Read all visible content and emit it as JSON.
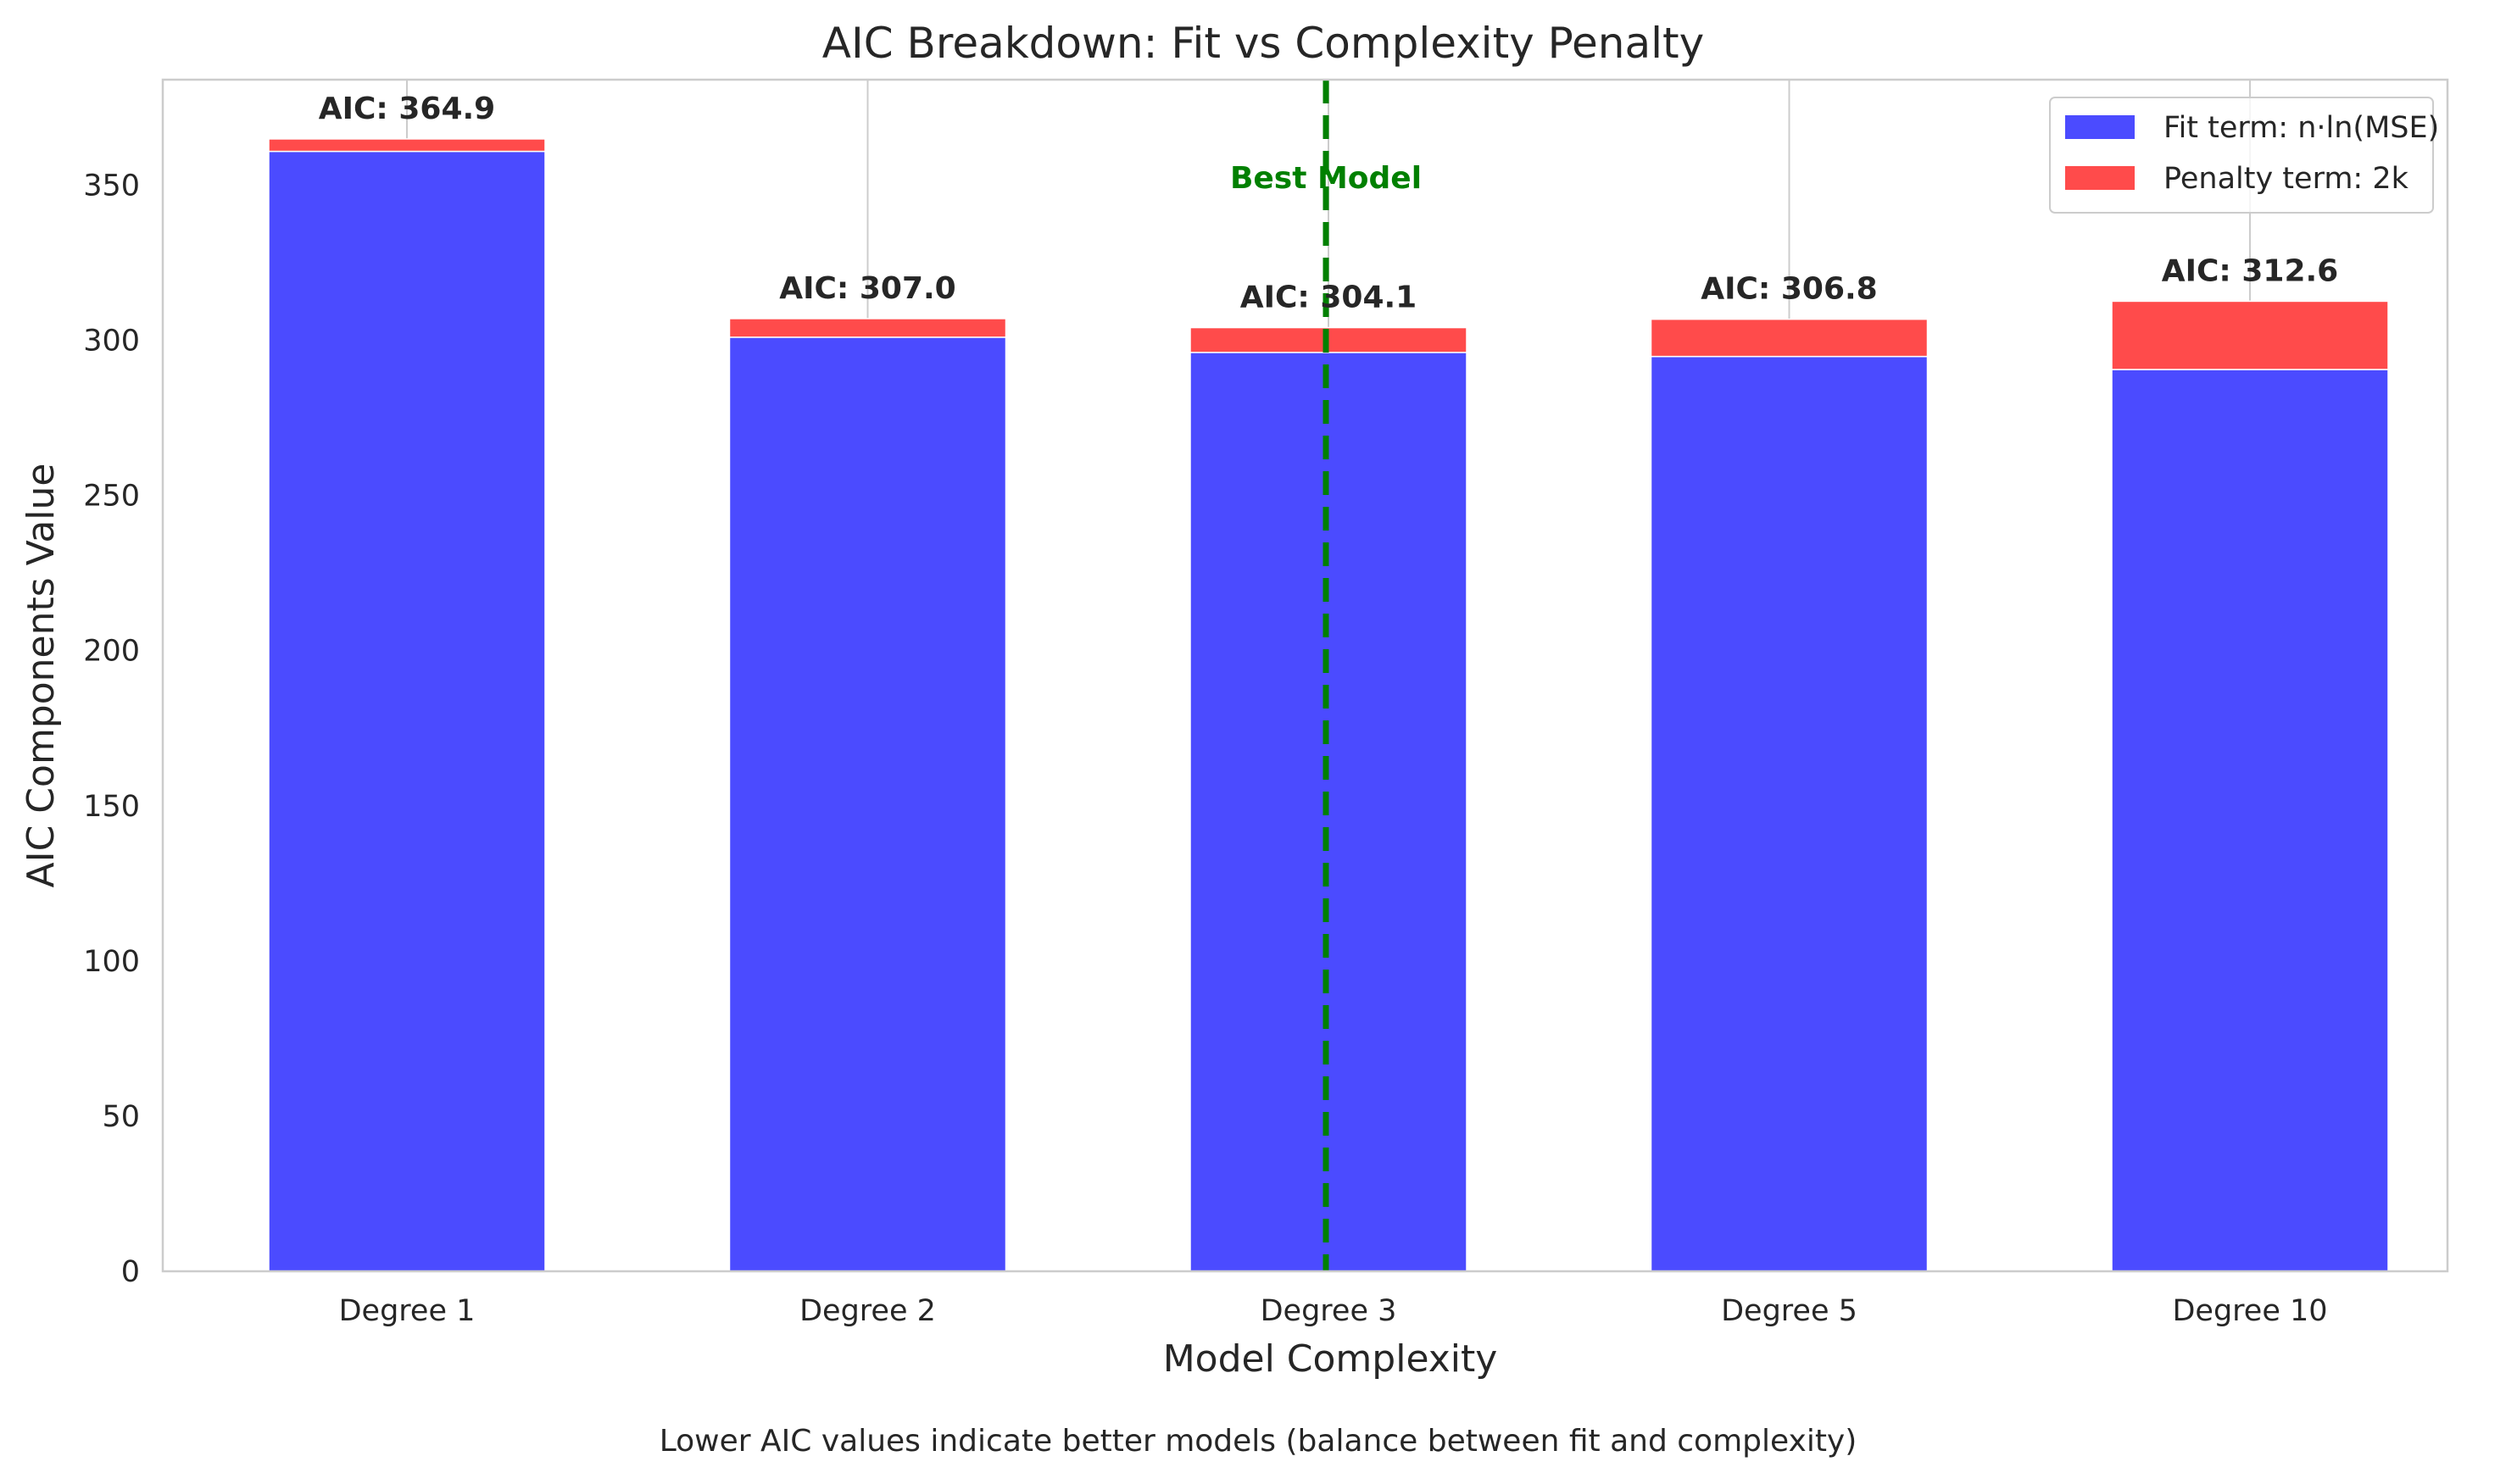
{
  "chart_data": {
    "type": "bar",
    "stacked": true,
    "title": "AIC Breakdown: Fit vs Complexity Penalty",
    "xlabel": "Model Complexity",
    "ylabel": "AIC Components Value",
    "categories": [
      "Degree 1",
      "Degree 2",
      "Degree 3",
      "Degree 5",
      "Degree 10"
    ],
    "series": [
      {
        "name": "Fit term: n·ln(MSE)",
        "color": "#4b4bff",
        "values": [
          360.9,
          301.0,
          296.1,
          294.8,
          290.6
        ]
      },
      {
        "name": "Penalty term: 2k",
        "color": "#ff4b4b",
        "values": [
          4,
          6,
          8,
          12,
          22
        ]
      }
    ],
    "totals": [
      364.9,
      307.0,
      304.1,
      306.8,
      312.6
    ],
    "total_labels": [
      "AIC: 364.9",
      "AIC: 307.0",
      "AIC: 304.1",
      "AIC: 306.8",
      "AIC: 312.6"
    ],
    "ylim": [
      0,
      384
    ],
    "yticks": [
      0,
      50,
      100,
      150,
      200,
      250,
      300,
      350
    ],
    "grid": true,
    "legend_position": "top-right",
    "best_model": {
      "index": 2,
      "label": "Best Model",
      "color": "#008000"
    },
    "caption": "Lower AIC values indicate better models (balance between fit and complexity)"
  }
}
